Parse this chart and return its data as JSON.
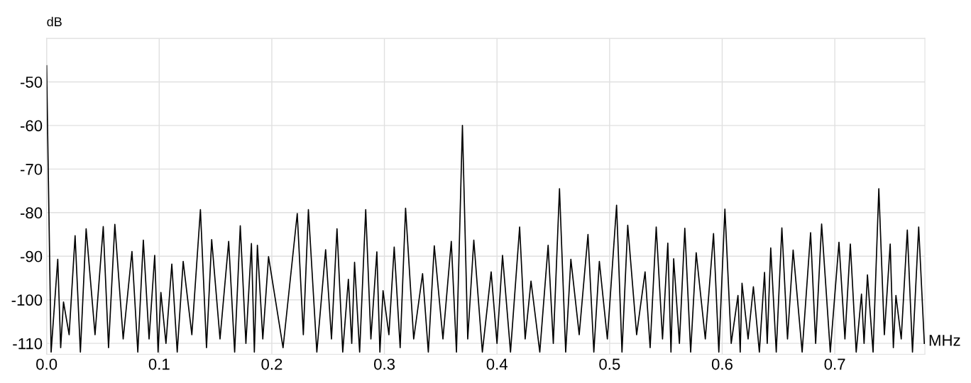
{
  "chart_data": {
    "type": "line",
    "xlabel": "MHz",
    "ylabel": "dB",
    "color": "#000000",
    "grid": true,
    "xlim": [
      0,
      0.78
    ],
    "ylim": [
      -112.5,
      -40
    ],
    "xticks": [
      {
        "value": 0,
        "label": "0.0"
      },
      0.1,
      0.2,
      0.3,
      0.4,
      0.5,
      0.6,
      0.7
    ],
    "yticks": [
      -110,
      -100,
      -90,
      -80,
      -70,
      -60,
      -50,
      {
        "value": -40,
        "label": null
      }
    ],
    "x": [
      0,
      0.004,
      0.0099,
      0.0125,
      0.015,
      0.02,
      0.0253,
      0.03,
      0.0351,
      0.043,
      0.0503,
      0.055,
      0.0606,
      0.068,
      0.0758,
      0.081,
      0.0859,
      0.091,
      0.096,
      0.099,
      0.1015,
      0.106,
      0.1112,
      0.116,
      0.1213,
      0.129,
      0.1366,
      0.142,
      0.1466,
      0.154,
      0.1617,
      0.167,
      0.172,
      0.177,
      0.1819,
      0.1845,
      0.1872,
      0.192,
      0.1971,
      0.21,
      0.2226,
      0.228,
      0.2325,
      0.24,
      0.2478,
      0.253,
      0.2579,
      0.263,
      0.268,
      0.271,
      0.2735,
      0.278,
      0.2834,
      0.288,
      0.2933,
      0.296,
      0.2988,
      0.304,
      0.3087,
      0.314,
      0.3188,
      0.326,
      0.3339,
      0.339,
      0.3443,
      0.352,
      0.3594,
      0.364,
      0.3693,
      0.374,
      0.3794,
      0.387,
      0.3948,
      0.4,
      0.4049,
      0.412,
      0.4201,
      0.425,
      0.4302,
      0.438,
      0.4454,
      0.45,
      0.4555,
      0.461,
      0.4656,
      0.473,
      0.4808,
      0.486,
      0.4909,
      0.498,
      0.5062,
      0.511,
      0.5161,
      0.524,
      0.5315,
      0.536,
      0.5414,
      0.547,
      0.5517,
      0.5545,
      0.5569,
      0.562,
      0.5668,
      0.572,
      0.5769,
      0.585,
      0.5923,
      0.597,
      0.6024,
      0.608,
      0.614,
      0.616,
      0.6176,
      0.623,
      0.6277,
      0.633,
      0.6376,
      0.64,
      0.6431,
      0.648,
      0.653,
      0.658,
      0.663,
      0.671,
      0.6785,
      0.683,
      0.6883,
      0.696,
      0.7037,
      0.709,
      0.7138,
      0.719,
      0.7237,
      0.726,
      0.729,
      0.734,
      0.7391,
      0.744,
      0.7492,
      0.752,
      0.7543,
      0.759,
      0.7644,
      0.769,
      0.7745,
      0.7795
    ],
    "values": [
      -46.3,
      -112,
      -90.7,
      -111,
      -100.5,
      -108,
      -85.3,
      -112,
      -83.7,
      -108,
      -83.2,
      -111,
      -82.7,
      -109,
      -88.9,
      -112,
      -86.3,
      -109,
      -89.8,
      -112,
      -98.3,
      -110,
      -91.8,
      -112,
      -91.2,
      -108,
      -79.3,
      -111,
      -86.2,
      -109,
      -86.6,
      -112,
      -83.0,
      -110,
      -87.1,
      -112,
      -87.5,
      -109,
      -90.1,
      -111,
      -80.2,
      -108,
      -79.3,
      -112,
      -88.5,
      -109,
      -83.7,
      -112,
      -95.3,
      -110,
      -91.4,
      -112,
      -79.3,
      -109,
      -89.0,
      -112,
      -97.9,
      -108,
      -87.9,
      -111,
      -79.0,
      -109,
      -94.0,
      -112,
      -87.6,
      -109,
      -86.6,
      -112,
      -60.0,
      -109,
      -86.3,
      -112,
      -93.6,
      -110,
      -89.8,
      -112,
      -83.3,
      -109,
      -95.7,
      -112,
      -87.5,
      -110,
      -74.5,
      -112,
      -90.7,
      -108,
      -85.0,
      -112,
      -91.2,
      -109,
      -78.3,
      -112,
      -82.9,
      -108,
      -93.6,
      -111,
      -83.3,
      -109,
      -87.0,
      -112,
      -90.6,
      -110,
      -83.6,
      -112,
      -89.2,
      -109,
      -84.8,
      -112,
      -79.2,
      -110,
      -99.0,
      -112,
      -96.2,
      -109,
      -97.0,
      -112,
      -93.7,
      -110,
      -88.1,
      -112,
      -83.5,
      -109,
      -88.6,
      -112,
      -84.6,
      -110,
      -82.6,
      -112,
      -86.8,
      -109,
      -87.2,
      -112,
      -98.7,
      -110,
      -94.3,
      -112,
      -74.5,
      -108,
      -87.2,
      -111,
      -99.0,
      -109,
      -84.0,
      -112,
      -83.3,
      -110
    ]
  }
}
